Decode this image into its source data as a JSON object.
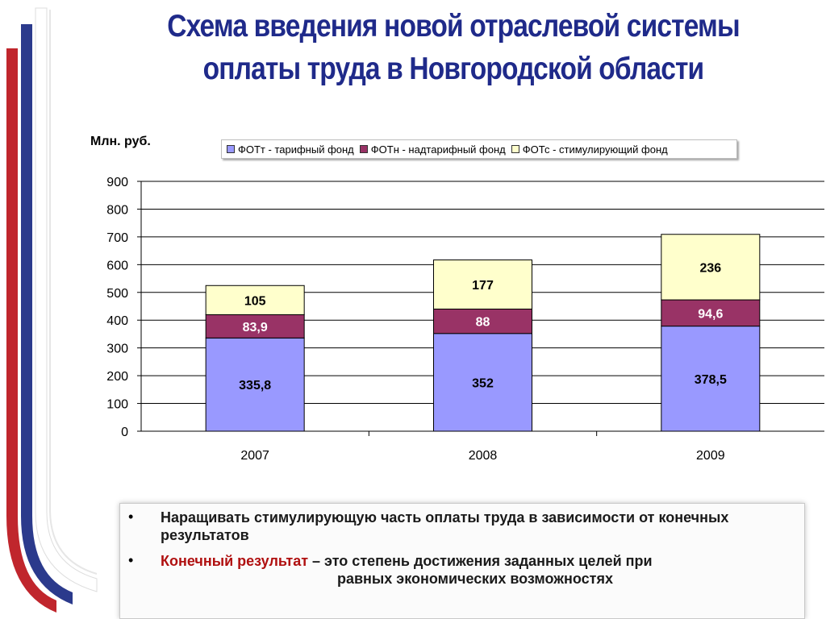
{
  "title_line1": "Схема введения новой отраслевой системы",
  "title_line2": "оплаты труда в Новгородской области",
  "unit_label": "Млн. руб.",
  "colors": {
    "title": "#1f2a8a",
    "fott": "#9999ff",
    "fotn": "#993366",
    "fotc": "#ffffcc",
    "accent": "#b01010"
  },
  "legend": [
    {
      "label": "ФОТт - тарифный фонд",
      "color": "#9999ff"
    },
    {
      "label": "ФОТн - надтарифный фонд",
      "color": "#993366"
    },
    {
      "label": "ФОТс - стимулирующий фонд",
      "color": "#ffffcc"
    }
  ],
  "chart_data": {
    "type": "bar",
    "stacked": true,
    "categories": [
      "2007",
      "2008",
      "2009"
    ],
    "series": [
      {
        "name": "ФОТт - тарифный фонд",
        "values": [
          335.8,
          352,
          378.5
        ],
        "labels": [
          "335,8",
          "352",
          "378,5"
        ]
      },
      {
        "name": "ФОТн - надтарифный фонд",
        "values": [
          83.9,
          88,
          94.6
        ],
        "labels": [
          "83,9",
          "88",
          "94,6"
        ]
      },
      {
        "name": "ФОТс - стимулирующий фонд",
        "values": [
          105,
          177,
          236
        ],
        "labels": [
          "105",
          "177",
          "236"
        ]
      }
    ],
    "ylabel": "Млн. руб.",
    "ylim": [
      0,
      900
    ],
    "yticks": [
      0,
      100,
      200,
      300,
      400,
      500,
      600,
      700,
      800,
      900
    ],
    "grid": true,
    "legend_position": "top"
  },
  "bullets": [
    {
      "marker": "•",
      "text": "Наращивать стимулирующую часть оплаты труда в зависимости от конечных результатов"
    },
    {
      "marker": "•",
      "accent": "Конечный результат",
      "rest_line1": " – это степень достижения заданных целей при",
      "rest_line2": "равных экономических возможностях"
    }
  ]
}
